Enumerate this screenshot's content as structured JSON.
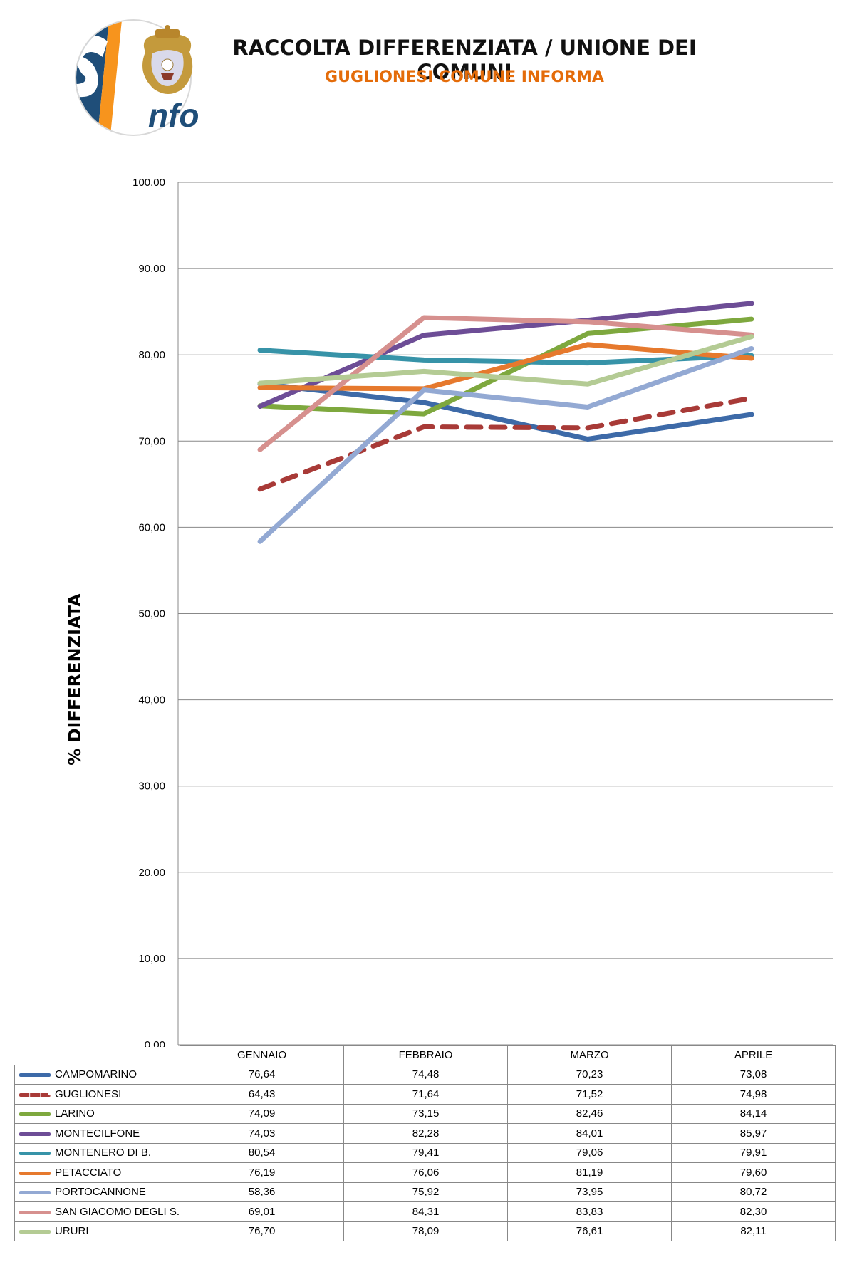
{
  "header": {
    "title": "RACCOLTA DIFFERENZIATA / UNIONE DEI COMUNI",
    "subtitle": "GUGLIONESI COMUNE INFORMA",
    "logo_text": "nfo"
  },
  "colors": {
    "subtitle": "#e46c0a",
    "logo_blue": "#1f4e79",
    "logo_orange": "#f7941d"
  },
  "chart_data": {
    "type": "line",
    "ylabel": "% DIFFERENZIATA",
    "xlabel": "",
    "ylim": [
      0,
      100
    ],
    "yticks": [
      "0,00",
      "10,00",
      "20,00",
      "30,00",
      "40,00",
      "50,00",
      "60,00",
      "70,00",
      "80,00",
      "90,00",
      "100,00"
    ],
    "grid": true,
    "legend": "data table below chart",
    "categories": [
      "GENNAIO",
      "FEBBRAIO",
      "MARZO",
      "APRILE"
    ],
    "series": [
      {
        "name": "CAMPOMARINO",
        "color": "#3d6aa8",
        "dashed": false,
        "values": [
          76.64,
          74.48,
          70.23,
          73.08
        ],
        "labels": [
          "76,64",
          "74,48",
          "70,23",
          "73,08"
        ]
      },
      {
        "name": "GUGLIONESI",
        "color": "#a83a37",
        "dashed": true,
        "values": [
          64.43,
          71.64,
          71.52,
          74.98
        ],
        "labels": [
          "64,43",
          "71,64",
          "71,52",
          "74,98"
        ]
      },
      {
        "name": "LARINO",
        "color": "#7ea83e",
        "dashed": false,
        "values": [
          74.09,
          73.15,
          82.46,
          84.14
        ],
        "labels": [
          "74,09",
          "73,15",
          "82,46",
          "84,14"
        ]
      },
      {
        "name": "MONTECILFONE",
        "color": "#6d4d96",
        "dashed": false,
        "values": [
          74.03,
          82.28,
          84.01,
          85.97
        ],
        "labels": [
          "74,03",
          "82,28",
          "84,01",
          "85,97"
        ]
      },
      {
        "name": "MONTENERO DI B.",
        "color": "#3793a8",
        "dashed": false,
        "values": [
          80.54,
          79.41,
          79.06,
          79.91
        ],
        "labels": [
          "80,54",
          "79,41",
          "79,06",
          "79,91"
        ]
      },
      {
        "name": "PETACCIATO",
        "color": "#e6792d",
        "dashed": false,
        "values": [
          76.19,
          76.06,
          81.19,
          79.6
        ],
        "labels": [
          "76,19",
          "76,06",
          "81,19",
          "79,60"
        ]
      },
      {
        "name": "PORTOCANNONE",
        "color": "#93a9d3",
        "dashed": false,
        "values": [
          58.36,
          75.92,
          73.95,
          80.72
        ],
        "labels": [
          "58,36",
          "75,92",
          "73,95",
          "80,72"
        ]
      },
      {
        "name": "SAN GIACOMO DEGLI S.",
        "color": "#d6908e",
        "dashed": false,
        "values": [
          69.01,
          84.31,
          83.83,
          82.3
        ],
        "labels": [
          "69,01",
          "84,31",
          "83,83",
          "82,30"
        ]
      },
      {
        "name": "URURI",
        "color": "#b4cb94",
        "dashed": false,
        "values": [
          76.7,
          78.09,
          76.61,
          82.11
        ],
        "labels": [
          "76,70",
          "78,09",
          "76,61",
          "82,11"
        ]
      }
    ]
  }
}
